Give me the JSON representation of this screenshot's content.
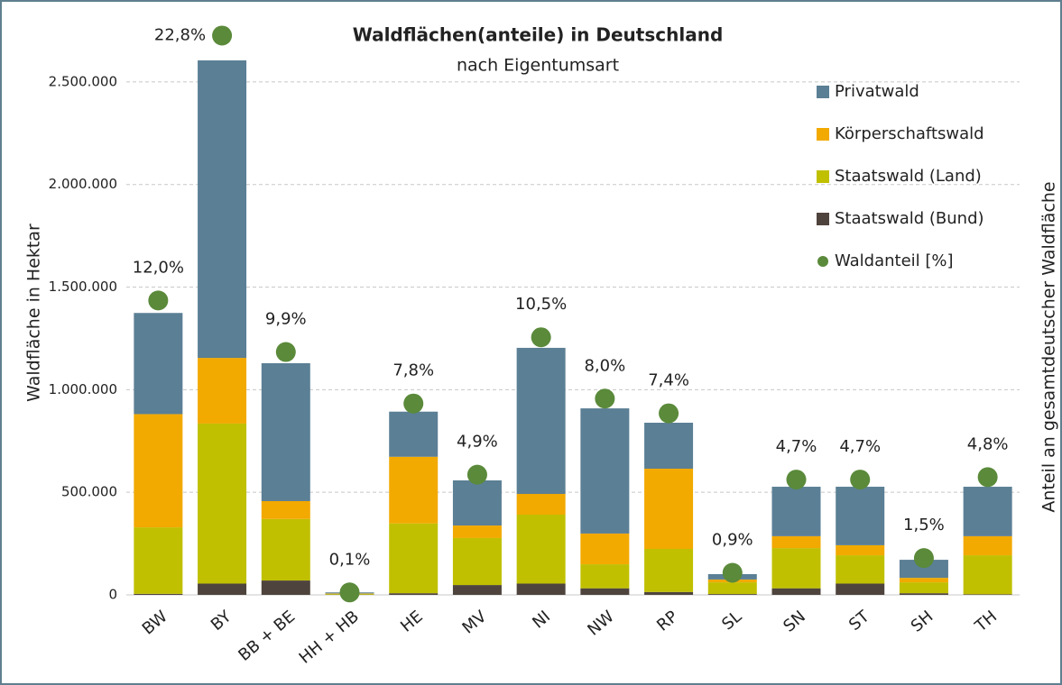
{
  "chart_data": {
    "type": "bar",
    "title": "Waldflächen(anteile) in Deutschland",
    "subtitle": "nach Eigentumsart",
    "y_label": "Waldfläche in Hektar",
    "y2_label": "Anteil an gesamtdeutscher Waldfläche",
    "categories": [
      "BW",
      "BY",
      "BB + BE",
      "HH + HB",
      "HE",
      "MV",
      "NI",
      "NW",
      "RP",
      "SL",
      "SN",
      "ST",
      "SH",
      "TH"
    ],
    "stacked": true,
    "series": [
      {
        "name": "Privatwald",
        "color": "#5b7f95",
        "values": [
          493000,
          1450000,
          672000,
          5000,
          220000,
          220000,
          712000,
          610000,
          224000,
          26000,
          241000,
          285000,
          88000,
          241000
        ]
      },
      {
        "name": "Körperschaftswald",
        "color": "#f2a900",
        "values": [
          552000,
          320000,
          87000,
          2000,
          325000,
          61000,
          101000,
          150000,
          391000,
          14000,
          58000,
          49000,
          22000,
          93000
        ]
      },
      {
        "name": "Staatswald (Land)",
        "color": "#c0c000",
        "values": [
          324000,
          780000,
          300000,
          4000,
          340000,
          229000,
          336000,
          117000,
          210000,
          57000,
          196000,
          138000,
          53000,
          190000
        ]
      },
      {
        "name": "Staatswald (Bund)",
        "color": "#4f443d",
        "values": [
          5000,
          55000,
          70000,
          1000,
          8000,
          48000,
          55000,
          32000,
          14000,
          4000,
          32000,
          55000,
          8000,
          3000
        ]
      },
      {
        "name": "Waldanteil [%]",
        "color": "#5a8a3a",
        "type": "scatter",
        "axis": "y2",
        "values": [
          12.0,
          22.8,
          9.9,
          0.1,
          7.8,
          4.9,
          10.5,
          8.0,
          7.4,
          0.9,
          4.7,
          4.7,
          1.5,
          4.8
        ],
        "value_labels": [
          "12,0%",
          "22,8%",
          "9,9%",
          "0,1%",
          "7,8%",
          "4,9%",
          "10,5%",
          "8,0%",
          "7,4%",
          "0,9%",
          "4,7%",
          "4,7%",
          "1,5%",
          "4,8%"
        ]
      }
    ],
    "ylim": [
      0,
      2750000
    ],
    "yticks": [
      0,
      {
        "value": 500000,
        "label": "500.000"
      },
      {
        "value": 1000000,
        "label": "1.000.000"
      },
      {
        "value": 1500000,
        "label": "1.500.000"
      },
      {
        "value": 2000000,
        "label": "2.000.000"
      },
      {
        "value": 2500000,
        "label": "2.500.000"
      }
    ],
    "y2lim": [
      0,
      23
    ],
    "grid": true,
    "legend": "right"
  }
}
